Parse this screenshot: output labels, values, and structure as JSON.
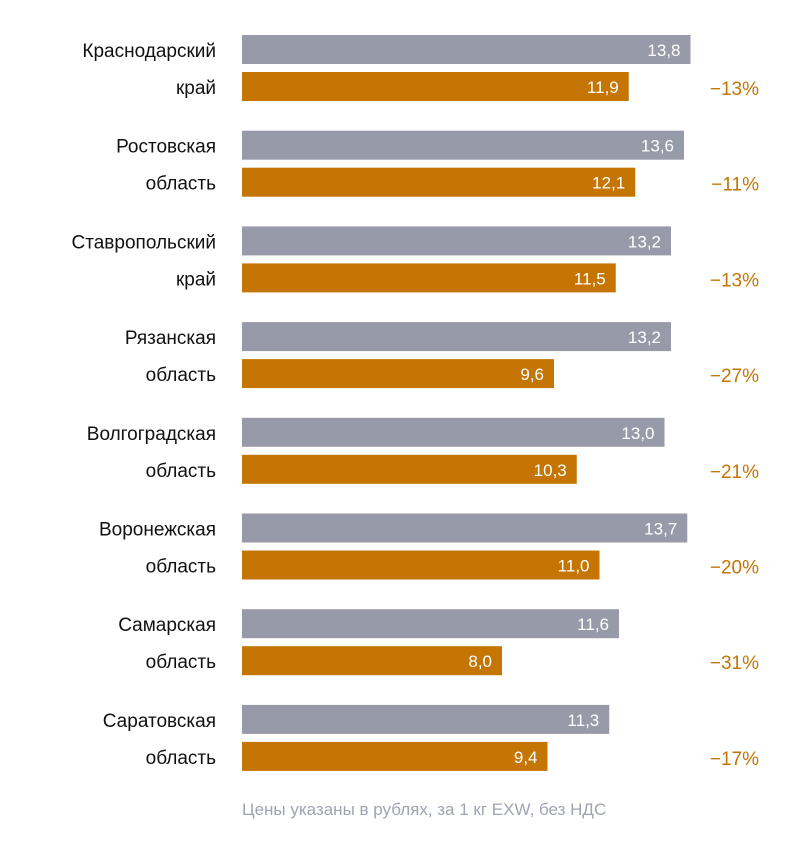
{
  "chart_data": {
    "type": "bar",
    "orientation": "horizontal",
    "categories": [
      [
        "Краснодарский",
        "край"
      ],
      [
        "Ростовская",
        "область"
      ],
      [
        "Ставропольский",
        "край"
      ],
      [
        "Рязанская",
        "область"
      ],
      [
        "Волгоградская",
        "область"
      ],
      [
        "Воронежская",
        "область"
      ],
      [
        "Самарская",
        "область"
      ],
      [
        "Саратовская",
        "область"
      ]
    ],
    "series": [
      {
        "name": "previous",
        "color": "#979aa9",
        "values": [
          13.8,
          13.6,
          13.2,
          13.2,
          13.0,
          13.7,
          11.6,
          11.3
        ],
        "labels": [
          "13,8",
          "13,6",
          "13,2",
          "13,2",
          "13,0",
          "13,7",
          "11,6",
          "11,3"
        ]
      },
      {
        "name": "current",
        "color": "#c47503",
        "values": [
          11.9,
          12.1,
          11.5,
          9.6,
          10.3,
          11.0,
          8.0,
          9.4
        ],
        "labels": [
          "11,9",
          "12,1",
          "11,5",
          "9,6",
          "10,3",
          "11,0",
          "8,0",
          "9,4"
        ]
      }
    ],
    "change_labels": [
      "−13%",
      "−11%",
      "−13%",
      "−27%",
      "−21%",
      "−20%",
      "−31%",
      "−17%"
    ],
    "xlim": [
      0,
      14
    ],
    "grid": false,
    "note": "Цены указаны в рублях, за 1 кг EXW, без НДС"
  }
}
